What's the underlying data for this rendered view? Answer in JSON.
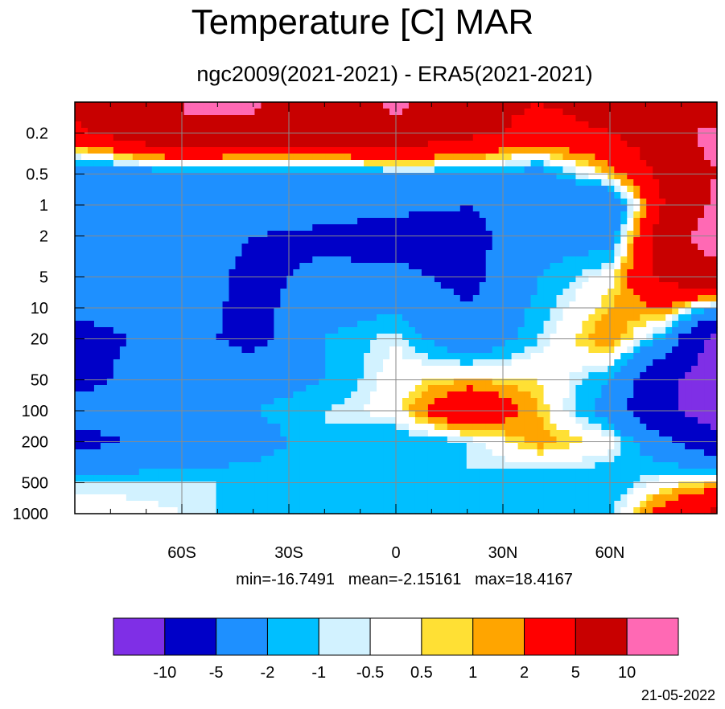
{
  "chart_data": {
    "type": "heatmap",
    "title": "Temperature [C] MAR",
    "subtitle": "ngc2009(2021-2021) - ERA5(2021-2021)",
    "x": {
      "ticks": [
        -60,
        -30,
        0,
        30,
        60
      ],
      "tick_labels": [
        "60S",
        "30S",
        "0",
        "30N",
        "60N"
      ],
      "range": [
        -90,
        90
      ]
    },
    "y": {
      "scale": "log",
      "reversed": true,
      "ticks": [
        0.2,
        0.5,
        1,
        2,
        5,
        10,
        20,
        50,
        100,
        200,
        500,
        1000
      ],
      "tick_labels": [
        "0.2",
        "0.5",
        "1",
        "2",
        "5",
        "10",
        "20",
        "50",
        "100",
        "200",
        "500",
        "1000"
      ],
      "range": [
        0.1,
        1000
      ]
    },
    "grid": true,
    "legend": "colorbar-bottom",
    "levels": [
      -10,
      -5,
      -2,
      -1,
      -0.5,
      0.5,
      1,
      2,
      5,
      10
    ],
    "level_labels": [
      "-10",
      "-5",
      "-2",
      "-1",
      "-0.5",
      "0.5",
      "1",
      "2",
      "5",
      "10"
    ],
    "colors": [
      "#7f2fe6",
      "#0000c8",
      "#1e90ff",
      "#00bfff",
      "#d2f2ff",
      "#ffffff",
      "#ffe034",
      "#ffa500",
      "#ff0000",
      "#c80000",
      "#ff69b4"
    ],
    "stats": {
      "min": "min=-16.7491",
      "mean": "mean=-2.15161",
      "max": "max=18.4167"
    },
    "field": {
      "lat": [
        -90,
        -60,
        -40,
        -20,
        0,
        20,
        40,
        60,
        75,
        90
      ],
      "plev": [
        0.1,
        0.2,
        0.5,
        1,
        2,
        5,
        20,
        50,
        100,
        200,
        500,
        1000
      ],
      "values": [
        [
          6,
          10,
          11,
          6,
          11,
          6,
          5,
          6,
          6,
          5
        ],
        [
          4,
          10,
          8,
          8,
          9,
          6,
          4,
          5,
          7,
          12
        ],
        [
          -4,
          -3,
          -3,
          -3,
          -2,
          -2,
          -3,
          1,
          6,
          10
        ],
        [
          -5,
          -3,
          -2,
          -3,
          -4,
          -5,
          -4,
          -5,
          5,
          11
        ],
        [
          -3,
          -3,
          -5,
          -6,
          -7,
          -6,
          -3,
          -3,
          7,
          13
        ],
        [
          -3,
          -3,
          -6,
          -4,
          -4,
          -6,
          -2,
          0,
          6,
          8
        ],
        [
          -6,
          -4,
          -6,
          -2,
          -0.5,
          -4,
          -1,
          2,
          -2,
          -12
        ],
        [
          -6,
          -3,
          -3,
          -2,
          0,
          1,
          0.5,
          -2,
          -9,
          -13
        ],
        [
          -4,
          -2,
          -2,
          -1,
          0,
          5,
          1,
          -3,
          -9,
          -13
        ],
        [
          -6,
          -4,
          -3,
          -1,
          -2,
          -1,
          1.5,
          0,
          -4,
          -8
        ],
        [
          -1,
          -1,
          -1,
          -1,
          -1,
          -1,
          -2,
          -2,
          0,
          1
        ],
        [
          0.5,
          -0.5,
          -1.5,
          -1.5,
          -1.2,
          -1.2,
          -1.5,
          -1.2,
          3,
          6
        ]
      ]
    }
  },
  "footer": {
    "date": "21-05-2022"
  }
}
